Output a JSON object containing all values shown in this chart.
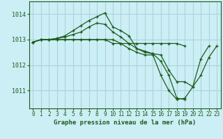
{
  "title": "Graphe pression niveau de la mer (hPa)",
  "bg_color": "#cceef5",
  "grid_color": "#aad4dc",
  "line_color": "#1a5c1a",
  "xlim": [
    -0.5,
    23.5
  ],
  "ylim": [
    1010.3,
    1014.5
  ],
  "yticks": [
    1011,
    1012,
    1013,
    1014
  ],
  "xticks": [
    0,
    1,
    2,
    3,
    4,
    5,
    6,
    7,
    8,
    9,
    10,
    11,
    12,
    13,
    14,
    15,
    16,
    17,
    18,
    19,
    20,
    21,
    22,
    23
  ],
  "series": [
    {
      "x": [
        0,
        1,
        2,
        3,
        4,
        5,
        6,
        7,
        8,
        9,
        10,
        11,
        12,
        13,
        14,
        15,
        16,
        17,
        18,
        19,
        20,
        21,
        22,
        23
      ],
      "y": [
        1012.9,
        1013.0,
        1013.0,
        1013.05,
        1013.15,
        1013.35,
        1013.55,
        1013.75,
        1013.9,
        1014.05,
        1013.5,
        1013.35,
        1013.15,
        1012.65,
        1012.5,
        1012.45,
        1012.4,
        1011.8,
        1011.35,
        1011.35,
        1011.15,
        1011.6,
        1012.3,
        1012.75
      ]
    },
    {
      "x": [
        0,
        1,
        2,
        3,
        4,
        5,
        6,
        7,
        8,
        9,
        10,
        11,
        12,
        13,
        14,
        15,
        16,
        17,
        18,
        19,
        20,
        21,
        22,
        23
      ],
      "y": [
        1012.9,
        1013.0,
        1013.0,
        1013.0,
        1013.0,
        1013.0,
        1013.0,
        1013.0,
        1013.0,
        1013.0,
        1012.85,
        1012.85,
        1012.85,
        1012.85,
        1012.85,
        1012.85,
        1012.85,
        1012.85,
        1012.85,
        1012.75,
        null,
        null,
        null,
        null
      ]
    },
    {
      "x": [
        0,
        1,
        2,
        3,
        4,
        5,
        6,
        7,
        8,
        9,
        10,
        11,
        12,
        13,
        14,
        15,
        16,
        17,
        18,
        19
      ],
      "y": [
        1012.9,
        1013.0,
        1013.0,
        1013.05,
        1013.1,
        1013.2,
        1013.3,
        1013.5,
        1013.65,
        1013.6,
        1013.3,
        1013.1,
        1012.85,
        1012.65,
        1012.55,
        1012.45,
        1012.15,
        1011.6,
        1010.7,
        1010.65
      ]
    },
    {
      "x": [
        0,
        1,
        2,
        3,
        4,
        5,
        6,
        7,
        8,
        9,
        10,
        11,
        12,
        13,
        14,
        15,
        16,
        17,
        18,
        19,
        20,
        21,
        22,
        23
      ],
      "y": [
        1012.9,
        1013.0,
        1013.0,
        1013.0,
        1013.0,
        1013.0,
        1013.0,
        1013.0,
        1013.0,
        1013.0,
        1013.0,
        1012.85,
        1012.65,
        1012.5,
        1012.4,
        1012.4,
        1011.6,
        1011.0,
        1010.65,
        1010.7,
        1011.15,
        1012.25,
        1012.75,
        null
      ]
    }
  ]
}
